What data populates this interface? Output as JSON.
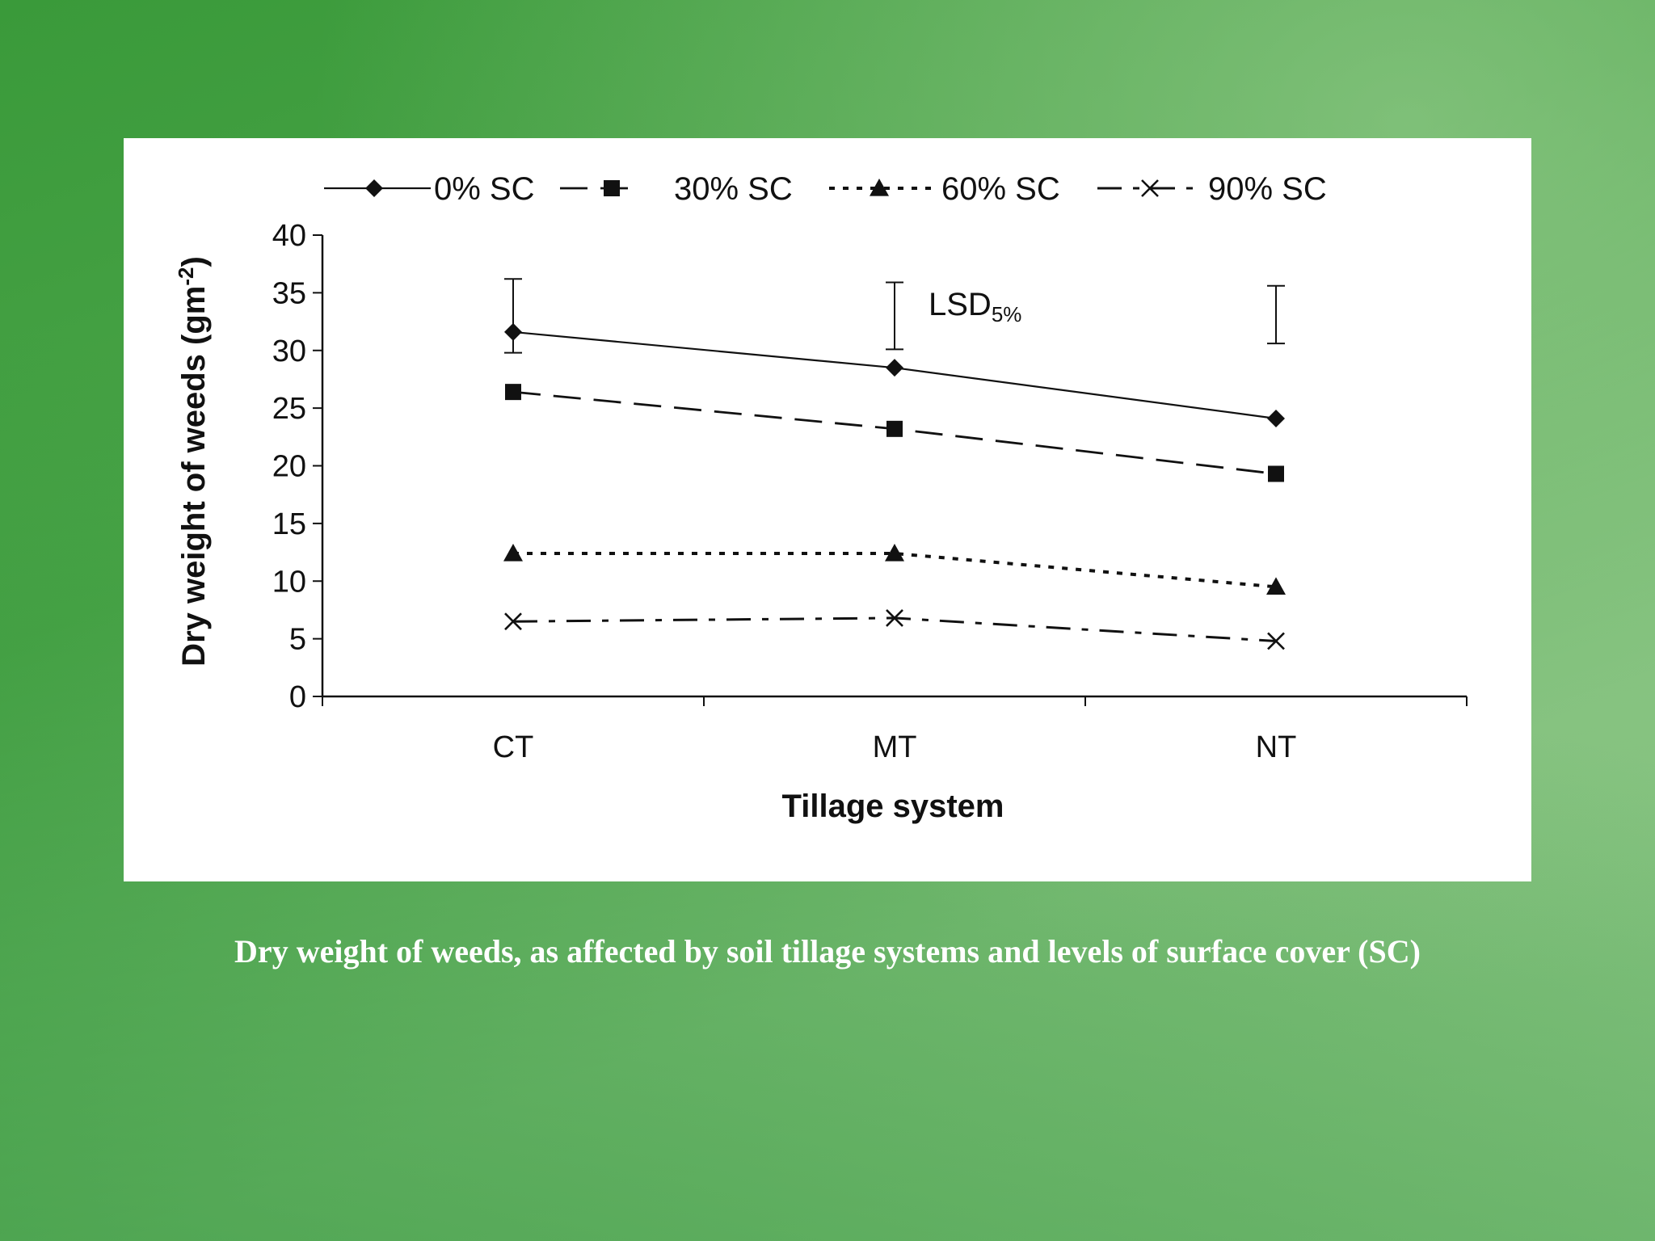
{
  "caption": "Dry weight of weeds, as affected by soil tillage systems and levels of surface cover (SC)",
  "colors": {
    "panel": "#ffffff",
    "ink": "#111111",
    "caption": "#ffffff"
  },
  "chart_data": {
    "type": "line",
    "title": "",
    "xlabel": "Tillage system",
    "ylabel_main": "Dry weight of weeds (gm",
    "ylabel_sup": "-2",
    "ylabel_end": ")",
    "categories": [
      "CT",
      "MT",
      "NT"
    ],
    "ylim": [
      0,
      40
    ],
    "yticks": [
      0,
      5,
      10,
      15,
      20,
      25,
      30,
      35,
      40
    ],
    "legend_position": "top",
    "grid": false,
    "series": [
      {
        "name": "0% SC",
        "values": [
          31.6,
          28.5,
          24.1
        ],
        "marker": "diamond",
        "dash": "solid"
      },
      {
        "name": "30% SC",
        "values": [
          26.4,
          23.2,
          19.3
        ],
        "marker": "square",
        "dash": "dashed"
      },
      {
        "name": "60% SC",
        "values": [
          12.4,
          12.4,
          9.5
        ],
        "marker": "triangle",
        "dash": "dotted"
      },
      {
        "name": "90% SC",
        "values": [
          6.5,
          6.8,
          4.8
        ],
        "marker": "x",
        "dash": "dashdot"
      }
    ],
    "error_bars": [
      {
        "category": "CT",
        "low": 29.8,
        "high": 36.2
      },
      {
        "category": "MT",
        "low": 30.1,
        "high": 35.9
      },
      {
        "category": "NT",
        "low": 30.6,
        "high": 35.6
      }
    ],
    "annotation": {
      "text": "LSD",
      "subscript": "5%"
    }
  }
}
